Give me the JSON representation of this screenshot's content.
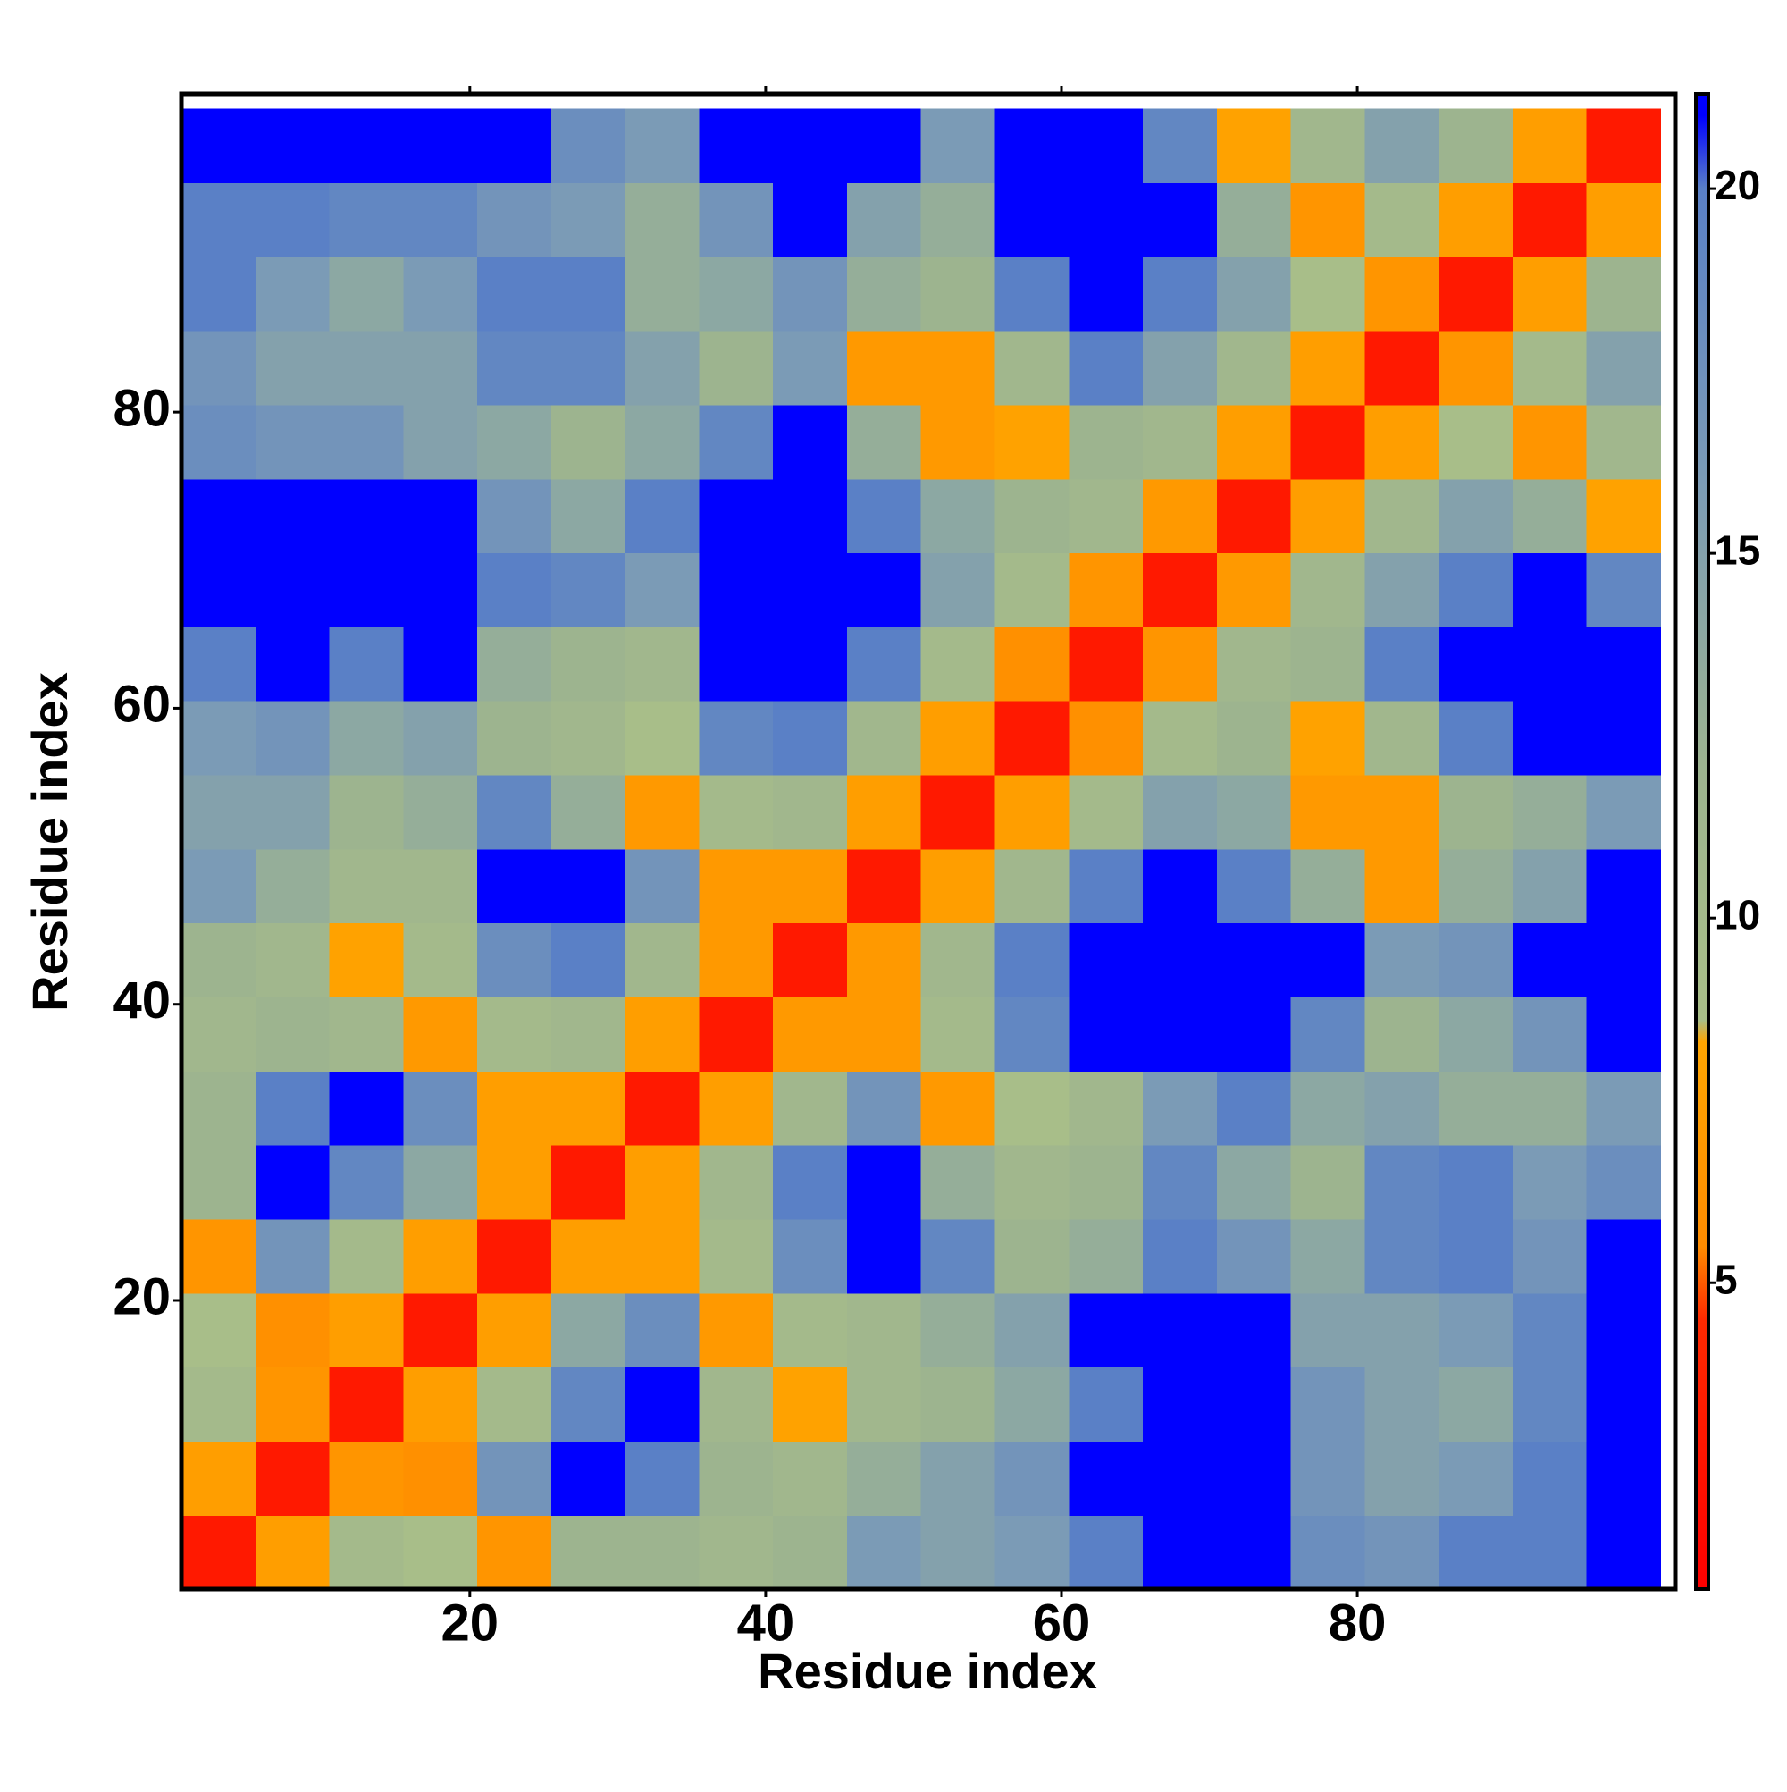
{
  "chart_data": {
    "type": "heatmap",
    "xlabel": "Residue index",
    "ylabel": "Residue index",
    "x": [
      3,
      8,
      13,
      18,
      23,
      28,
      33,
      38,
      43,
      48,
      53,
      58,
      63,
      68,
      73,
      78,
      83,
      88,
      93,
      98
    ],
    "y": [
      3,
      8,
      13,
      18,
      23,
      28,
      33,
      38,
      43,
      48,
      53,
      58,
      63,
      68,
      73,
      78,
      83,
      88,
      93,
      98
    ],
    "z": [
      [
        3,
        7.5,
        10,
        9,
        6.5,
        12,
        12,
        11,
        12,
        16,
        15,
        16,
        20,
        21,
        21,
        18,
        17,
        20,
        20,
        21
      ],
      [
        7.5,
        3,
        6.5,
        6,
        17,
        21,
        20,
        12,
        11,
        13,
        15,
        17,
        21,
        21,
        21,
        17,
        15,
        16,
        20,
        21
      ],
      [
        10,
        6.5,
        3,
        7.5,
        10,
        19,
        21,
        11,
        8,
        11,
        12,
        14,
        20,
        21,
        21,
        17,
        15,
        14,
        19,
        21
      ],
      [
        9,
        6,
        7.5,
        3,
        7.5,
        14,
        18,
        7,
        10,
        11,
        13,
        15,
        21,
        21,
        21,
        15,
        15,
        16,
        19,
        21
      ],
      [
        6.5,
        17,
        10,
        7.5,
        3,
        7.5,
        7.5,
        10,
        18,
        21,
        19,
        12,
        13,
        20,
        17,
        14,
        19,
        20,
        17,
        21
      ],
      [
        12,
        21,
        19,
        14,
        7.5,
        3,
        7.5,
        11,
        20,
        21,
        13,
        11,
        12,
        19,
        14,
        12,
        19,
        20,
        16,
        18
      ],
      [
        12,
        20,
        21,
        18,
        7.5,
        7.5,
        3,
        7.5,
        11,
        17,
        7,
        9,
        11,
        16,
        20,
        14,
        15,
        13,
        13,
        16
      ],
      [
        11,
        12,
        11,
        7,
        10,
        11,
        7.5,
        3,
        7,
        7,
        10,
        19,
        21,
        21,
        21,
        19,
        12,
        14,
        17,
        21
      ],
      [
        12,
        11,
        8,
        10,
        18,
        20,
        11,
        7,
        3,
        7,
        11,
        20,
        21,
        21,
        21,
        21,
        16,
        17,
        21,
        21
      ],
      [
        16,
        13,
        11,
        11,
        21,
        21,
        17,
        7,
        7,
        3,
        7.5,
        11,
        20,
        21,
        20,
        13,
        7,
        13,
        15,
        21
      ],
      [
        15,
        15,
        12,
        13,
        19,
        13,
        7,
        10,
        11,
        7.5,
        3,
        7.5,
        10,
        15,
        14,
        7,
        7,
        12,
        13,
        16
      ],
      [
        16,
        17,
        14,
        15,
        12,
        11,
        9,
        19,
        20,
        11,
        7.5,
        3,
        6,
        10,
        12,
        8,
        11,
        20,
        21,
        21
      ],
      [
        20,
        21,
        20,
        21,
        13,
        12,
        11,
        21,
        21,
        20,
        10,
        6,
        3,
        6.5,
        11,
        12,
        20,
        21,
        21,
        21
      ],
      [
        21,
        21,
        21,
        21,
        20,
        19,
        16,
        21,
        21,
        21,
        15,
        10,
        6.5,
        3,
        7,
        11,
        15,
        20,
        21,
        19
      ],
      [
        21,
        21,
        21,
        21,
        17,
        14,
        20,
        21,
        21,
        20,
        14,
        12,
        11,
        7,
        3,
        7.5,
        11,
        15,
        13,
        8
      ],
      [
        18,
        17,
        17,
        15,
        14,
        12,
        14,
        19,
        21,
        13,
        7,
        8,
        12,
        11,
        7.5,
        3,
        7.5,
        9,
        6.5,
        11
      ],
      [
        17,
        15,
        15,
        15,
        19,
        19,
        15,
        12,
        16,
        7,
        7,
        11,
        20,
        15,
        11,
        7.5,
        3,
        6.5,
        10,
        15
      ],
      [
        20,
        16,
        14,
        16,
        20,
        20,
        13,
        14,
        17,
        13,
        12,
        20,
        21,
        20,
        15,
        9,
        6.5,
        3,
        7.5,
        12
      ],
      [
        20,
        20,
        19,
        19,
        17,
        16,
        13,
        17,
        21,
        15,
        13,
        21,
        21,
        21,
        13,
        6.5,
        10,
        7.5,
        3,
        7.5
      ],
      [
        21,
        21,
        21,
        21,
        21,
        18,
        16,
        21,
        21,
        21,
        16,
        21,
        21,
        19,
        8,
        11,
        15,
        12,
        7.5,
        3
      ]
    ],
    "xlim": [
      0.5,
      101.5
    ],
    "ylim": [
      0.5,
      101.5
    ],
    "xticks": [
      20,
      40,
      60,
      80
    ],
    "yticks": [
      20,
      40,
      60,
      80
    ],
    "colorbar": {
      "lim": [
        0.8,
        21.3
      ],
      "ticks": [
        5,
        10,
        15,
        20
      ]
    },
    "colorscale": [
      [
        0.8,
        "#ff0000"
      ],
      [
        4.5,
        "#ff2a00"
      ],
      [
        5.5,
        "#ff8c00"
      ],
      [
        8.3,
        "#ffa500"
      ],
      [
        8.6,
        "#a9bf88"
      ],
      [
        12,
        "#9db48f"
      ],
      [
        16,
        "#7b9bb6"
      ],
      [
        20,
        "#5a80c6"
      ],
      [
        21,
        "#0000ff"
      ]
    ]
  }
}
